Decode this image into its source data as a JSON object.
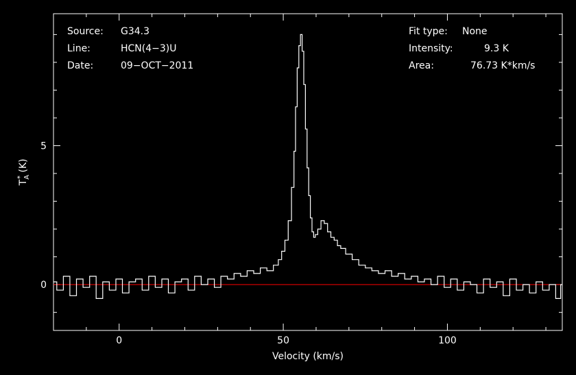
{
  "chart_data": {
    "type": "line",
    "xlabel": "Velocity (km/s)",
    "ylabel": {
      "base": "T",
      "sup": "*",
      "sub": "A",
      "unit": " (K)"
    },
    "xlim": [
      -20,
      135
    ],
    "ylim": [
      -1.65,
      9.75
    ],
    "x_ticks": [
      0,
      50,
      100
    ],
    "y_ticks": [
      0,
      5
    ],
    "baseline": {
      "y": 0,
      "color": "#ff0000"
    },
    "line_color": "#ffffff",
    "info": {
      "left": [
        {
          "label": "Source:",
          "value": "G34.3"
        },
        {
          "label": "Line:",
          "value": "HCN(4−3)U"
        },
        {
          "label": "Date:",
          "value": "09−OCT−2011"
        }
      ],
      "right": [
        {
          "label": "Fit type:",
          "value": "None"
        },
        {
          "label": "Intensity:",
          "value": "9.3 K"
        },
        {
          "label": "Area:",
          "value": "76.73 K*km/s"
        }
      ]
    },
    "series": [
      {
        "x": [
          -20,
          -18,
          -16,
          -14,
          -12,
          -10,
          -8,
          -6,
          -4,
          -2,
          0,
          2,
          4,
          6,
          8,
          10,
          12,
          14,
          16,
          18,
          20,
          22,
          24,
          26,
          28,
          30,
          32,
          34,
          36,
          38,
          40,
          42,
          44,
          46,
          48,
          49,
          50,
          51,
          52,
          53,
          53.5,
          54,
          54.5,
          55,
          55.5,
          56,
          56.5,
          57,
          57.5,
          58,
          58.5,
          59,
          59.5,
          60,
          61,
          62,
          63,
          64,
          65,
          66,
          67,
          68,
          70,
          72,
          74,
          76,
          78,
          80,
          82,
          84,
          86,
          88,
          90,
          92,
          94,
          96,
          98,
          100,
          102,
          104,
          106,
          108,
          110,
          112,
          114,
          116,
          118,
          120,
          122,
          124,
          126,
          128,
          130,
          132,
          134,
          135
        ],
        "y": [
          0.1,
          -0.2,
          0.3,
          -0.4,
          0.2,
          -0.1,
          0.3,
          -0.5,
          0.1,
          -0.2,
          0.2,
          -0.3,
          0.1,
          0.2,
          -0.2,
          0.3,
          -0.1,
          0.2,
          -0.3,
          0.1,
          0.2,
          -0.2,
          0.3,
          0.0,
          0.2,
          -0.1,
          0.3,
          0.2,
          0.4,
          0.3,
          0.5,
          0.4,
          0.6,
          0.5,
          0.7,
          0.9,
          1.2,
          1.6,
          2.3,
          3.5,
          4.8,
          6.4,
          7.8,
          8.6,
          9.0,
          8.4,
          7.2,
          5.6,
          4.2,
          3.2,
          2.4,
          1.9,
          1.7,
          1.8,
          2.0,
          2.3,
          2.2,
          1.9,
          1.7,
          1.6,
          1.4,
          1.3,
          1.1,
          0.9,
          0.7,
          0.6,
          0.5,
          0.4,
          0.5,
          0.3,
          0.4,
          0.2,
          0.3,
          0.1,
          0.2,
          0.0,
          0.3,
          -0.1,
          0.2,
          -0.2,
          0.1,
          0.0,
          -0.3,
          0.2,
          -0.1,
          0.1,
          -0.4,
          0.2,
          -0.2,
          0.0,
          -0.3,
          0.1,
          -0.2,
          0.0,
          -0.5,
          0.0
        ]
      }
    ]
  }
}
